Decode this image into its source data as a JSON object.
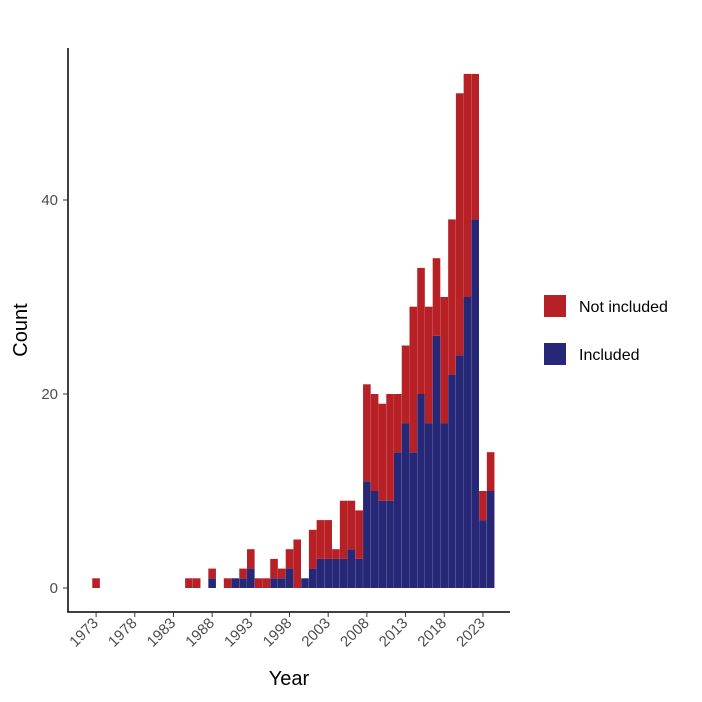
{
  "chart_data": {
    "type": "bar",
    "stacked": true,
    "title": "",
    "xlabel": "Year",
    "ylabel": "Count",
    "xlim": [
      1969.5,
      2026.5
    ],
    "ylim": [
      0,
      55
    ],
    "x_ticks": [
      "1973",
      "1978",
      "1983",
      "1988",
      "1993",
      "1998",
      "2003",
      "2008",
      "2013",
      "2018",
      "2023"
    ],
    "y_ticks": [
      "0",
      "20",
      "40"
    ],
    "legend_position": "right",
    "years": [
      1973,
      1985,
      1986,
      1988,
      1990,
      1991,
      1992,
      1993,
      1994,
      1995,
      1996,
      1997,
      1998,
      1999,
      2000,
      2001,
      2002,
      2003,
      2004,
      2005,
      2006,
      2007,
      2008,
      2009,
      2010,
      2011,
      2012,
      2013,
      2014,
      2015,
      2016,
      2017,
      2018,
      2019,
      2020,
      2021,
      2022,
      2023,
      2024
    ],
    "series": [
      {
        "name": "Included",
        "color": "#262877",
        "values": [
          0,
          0,
          0,
          1,
          0,
          1,
          1,
          2,
          0,
          0,
          1,
          1,
          2,
          0,
          1,
          2,
          3,
          3,
          3,
          3,
          4,
          3,
          11,
          10,
          9,
          9,
          14,
          17,
          14,
          20,
          17,
          26,
          17,
          22,
          24,
          30,
          38,
          7,
          10
        ]
      },
      {
        "name": "Not included",
        "color": "#b72025",
        "values": [
          1,
          1,
          1,
          1,
          1,
          0,
          1,
          2,
          1,
          1,
          2,
          1,
          2,
          5,
          0,
          4,
          4,
          4,
          1,
          6,
          5,
          5,
          10,
          10,
          10,
          11,
          6,
          8,
          15,
          13,
          12,
          8,
          13,
          16,
          27,
          23,
          15,
          3,
          4
        ]
      }
    ],
    "legend": [
      "Not included",
      "Included"
    ]
  }
}
